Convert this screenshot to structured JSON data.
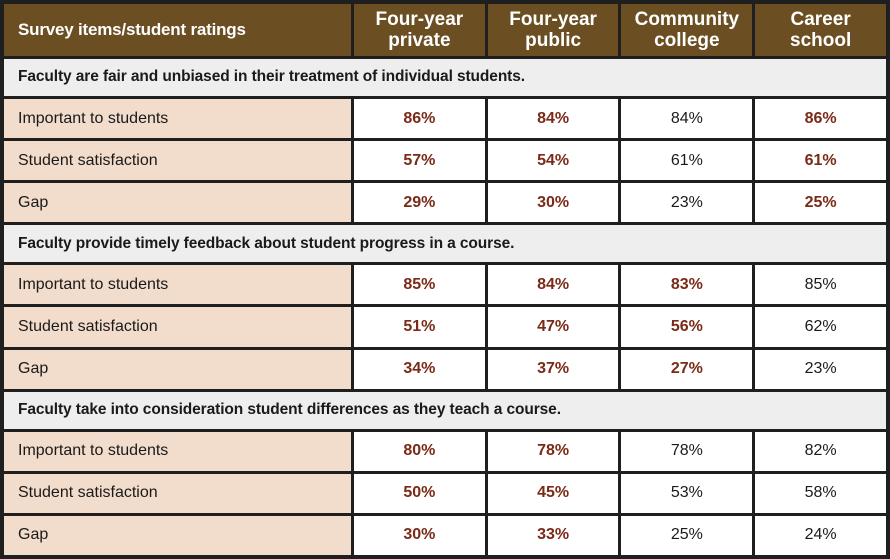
{
  "header": {
    "first": "Survey items/student ratings",
    "columns": [
      {
        "line1": "Four-year",
        "line2": "private"
      },
      {
        "line1": "Four-year",
        "line2": "public"
      },
      {
        "line1": "Community",
        "line2": "college"
      },
      {
        "line1": "Career",
        "line2": "school"
      }
    ]
  },
  "colors": {
    "header_bg": "#6b4f22",
    "label_bg": "#f2dccb",
    "section_bg": "#eeeeee",
    "highlight_text": "#7a2a17"
  },
  "sections": [
    {
      "title": "Faculty are fair and unbiased in their treatment of individual students.",
      "rows": [
        {
          "label": "Important to students",
          "values": [
            "86%",
            "84%",
            "84%",
            "86%"
          ],
          "highlight": [
            true,
            true,
            false,
            true
          ]
        },
        {
          "label": "Student satisfaction",
          "values": [
            "57%",
            "54%",
            "61%",
            "61%"
          ],
          "highlight": [
            true,
            true,
            false,
            true
          ]
        },
        {
          "label": "Gap",
          "values": [
            "29%",
            "30%",
            "23%",
            "25%"
          ],
          "highlight": [
            true,
            true,
            false,
            true
          ]
        }
      ]
    },
    {
      "title": "Faculty provide timely feedback about student progress in a course.",
      "rows": [
        {
          "label": "Important to students",
          "values": [
            "85%",
            "84%",
            "83%",
            "85%"
          ],
          "highlight": [
            true,
            true,
            true,
            false
          ]
        },
        {
          "label": "Student satisfaction",
          "values": [
            "51%",
            "47%",
            "56%",
            "62%"
          ],
          "highlight": [
            true,
            true,
            true,
            false
          ]
        },
        {
          "label": "Gap",
          "values": [
            "34%",
            "37%",
            "27%",
            "23%"
          ],
          "highlight": [
            true,
            true,
            true,
            false
          ]
        }
      ]
    },
    {
      "title": "Faculty take into consideration student differences as they teach a course.",
      "rows": [
        {
          "label": "Important to students",
          "values": [
            "80%",
            "78%",
            "78%",
            "82%"
          ],
          "highlight": [
            true,
            true,
            false,
            false
          ]
        },
        {
          "label": "Student satisfaction",
          "values": [
            "50%",
            "45%",
            "53%",
            "58%"
          ],
          "highlight": [
            true,
            true,
            false,
            false
          ]
        },
        {
          "label": "Gap",
          "values": [
            "30%",
            "33%",
            "25%",
            "24%"
          ],
          "highlight": [
            true,
            true,
            false,
            false
          ]
        }
      ]
    }
  ]
}
